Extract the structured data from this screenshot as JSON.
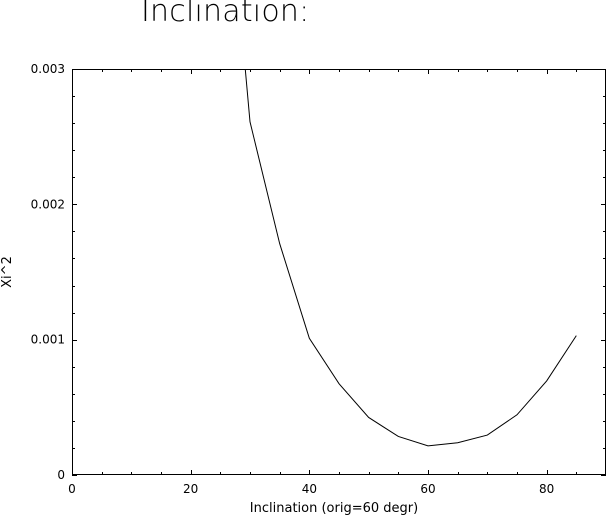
{
  "page": {
    "title": "Inclination:"
  },
  "chart_data": {
    "type": "line",
    "title": "Inclination:",
    "xlabel": "Inclination (orig=60 degr)",
    "ylabel": "Xi^2",
    "xlim": [
      0,
      90
    ],
    "ylim": [
      0,
      0.003
    ],
    "xticks": [
      0,
      20,
      40,
      60,
      80
    ],
    "xtick_labels": [
      "0",
      "20",
      "40",
      "60",
      "80"
    ],
    "yticks": [
      0,
      0.001,
      0.002,
      0.003
    ],
    "ytick_labels": [
      "0",
      "0.001",
      "0.002",
      "0.003"
    ],
    "grid": false,
    "series": [
      {
        "x": [
          29.2,
          30,
          35,
          40,
          45,
          50,
          55,
          60,
          65,
          70,
          75,
          80,
          85
        ],
        "y": [
          0.003,
          0.00261,
          0.00171,
          0.00101,
          0.000675,
          0.000425,
          0.000285,
          0.000215,
          0.000238,
          0.000295,
          0.000445,
          0.000695,
          0.00103
        ]
      }
    ],
    "colors": {
      "line": "#000000",
      "axis": "#000000",
      "background": "#ffffff"
    }
  }
}
